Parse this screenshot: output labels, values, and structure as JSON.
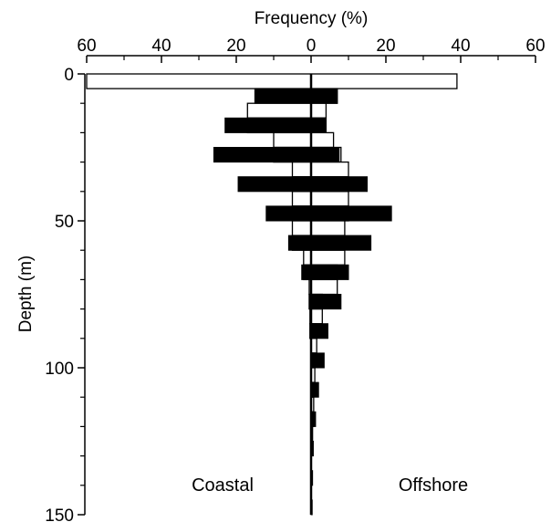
{
  "chart_data": {
    "type": "bar",
    "orientation": "horizontal-mirrored",
    "title": "",
    "xlabel": "Frequency (%)",
    "ylabel": "Depth (m)",
    "x_ticks": [
      "60",
      "40",
      "20",
      "0",
      "20",
      "40",
      "60"
    ],
    "y_ticks": [
      "0",
      "50",
      "100",
      "150"
    ],
    "xlim": [
      -60,
      60
    ],
    "ylim": [
      0,
      150
    ],
    "bin_width": 5,
    "annotations": {
      "left": "Coastal",
      "right": "Offshore"
    },
    "series": [
      {
        "fill": "#ffffff",
        "bins": [
          {
            "y0": 0,
            "y1": 5,
            "coastal": 60,
            "offshore": 39
          },
          {
            "y0": 5,
            "y1": 10,
            "coastal": 15,
            "offshore": 7
          },
          {
            "y0": 10,
            "y1": 15,
            "coastal": 17,
            "offshore": 4
          },
          {
            "y0": 15,
            "y1": 20,
            "coastal": 17,
            "offshore": 4
          },
          {
            "y0": 20,
            "y1": 25,
            "coastal": 10,
            "offshore": 6
          },
          {
            "y0": 25,
            "y1": 30,
            "coastal": 10,
            "offshore": 8
          },
          {
            "y0": 30,
            "y1": 35,
            "coastal": 5,
            "offshore": 10
          },
          {
            "y0": 35,
            "y1": 40,
            "coastal": 5,
            "offshore": 10
          },
          {
            "y0": 40,
            "y1": 45,
            "coastal": 5,
            "offshore": 10
          },
          {
            "y0": 45,
            "y1": 50,
            "coastal": 5,
            "offshore": 10
          },
          {
            "y0": 50,
            "y1": 55,
            "coastal": 5,
            "offshore": 9
          },
          {
            "y0": 55,
            "y1": 60,
            "coastal": 5,
            "offshore": 9
          },
          {
            "y0": 60,
            "y1": 65,
            "coastal": 2,
            "offshore": 9
          },
          {
            "y0": 65,
            "y1": 70,
            "coastal": 2,
            "offshore": 7
          },
          {
            "y0": 70,
            "y1": 75,
            "coastal": 0.5,
            "offshore": 7
          },
          {
            "y0": 75,
            "y1": 80,
            "coastal": 0.5,
            "offshore": 3
          },
          {
            "y0": 80,
            "y1": 85,
            "coastal": 0.3,
            "offshore": 3
          },
          {
            "y0": 85,
            "y1": 90,
            "coastal": 0.3,
            "offshore": 1.5
          },
          {
            "y0": 90,
            "y1": 95,
            "coastal": 0,
            "offshore": 1.5
          },
          {
            "y0": 95,
            "y1": 100,
            "coastal": 0,
            "offshore": 1
          },
          {
            "y0": 100,
            "y1": 105,
            "coastal": 0,
            "offshore": 1
          },
          {
            "y0": 105,
            "y1": 110,
            "coastal": 0,
            "offshore": 0.7
          },
          {
            "y0": 110,
            "y1": 115,
            "coastal": 0,
            "offshore": 0.7
          },
          {
            "y0": 115,
            "y1": 120,
            "coastal": 0,
            "offshore": 0.5
          },
          {
            "y0": 120,
            "y1": 125,
            "coastal": 0,
            "offshore": 0.4
          }
        ]
      },
      {
        "fill": "#000000",
        "bins": [
          {
            "y0": 5,
            "y1": 10,
            "coastal": 15,
            "offshore": 7
          },
          {
            "y0": 15,
            "y1": 20,
            "coastal": 23,
            "offshore": 4
          },
          {
            "y0": 25,
            "y1": 30,
            "coastal": 26,
            "offshore": 7.5
          },
          {
            "y0": 35,
            "y1": 40,
            "coastal": 19.5,
            "offshore": 15
          },
          {
            "y0": 45,
            "y1": 50,
            "coastal": 12,
            "offshore": 21.5
          },
          {
            "y0": 55,
            "y1": 60,
            "coastal": 6,
            "offshore": 16
          },
          {
            "y0": 65,
            "y1": 70,
            "coastal": 2.5,
            "offshore": 10
          },
          {
            "y0": 75,
            "y1": 80,
            "coastal": 0.5,
            "offshore": 8
          },
          {
            "y0": 85,
            "y1": 90,
            "coastal": 0.3,
            "offshore": 4.5
          },
          {
            "y0": 95,
            "y1": 100,
            "coastal": 0,
            "offshore": 3.5
          },
          {
            "y0": 105,
            "y1": 110,
            "coastal": 0,
            "offshore": 2
          },
          {
            "y0": 115,
            "y1": 120,
            "coastal": 0,
            "offshore": 1.2
          },
          {
            "y0": 125,
            "y1": 130,
            "coastal": 0,
            "offshore": 0.6
          },
          {
            "y0": 135,
            "y1": 140,
            "coastal": 0,
            "offshore": 0.4
          },
          {
            "y0": 145,
            "y1": 150,
            "coastal": 0,
            "offshore": 0.3
          }
        ]
      }
    ]
  }
}
